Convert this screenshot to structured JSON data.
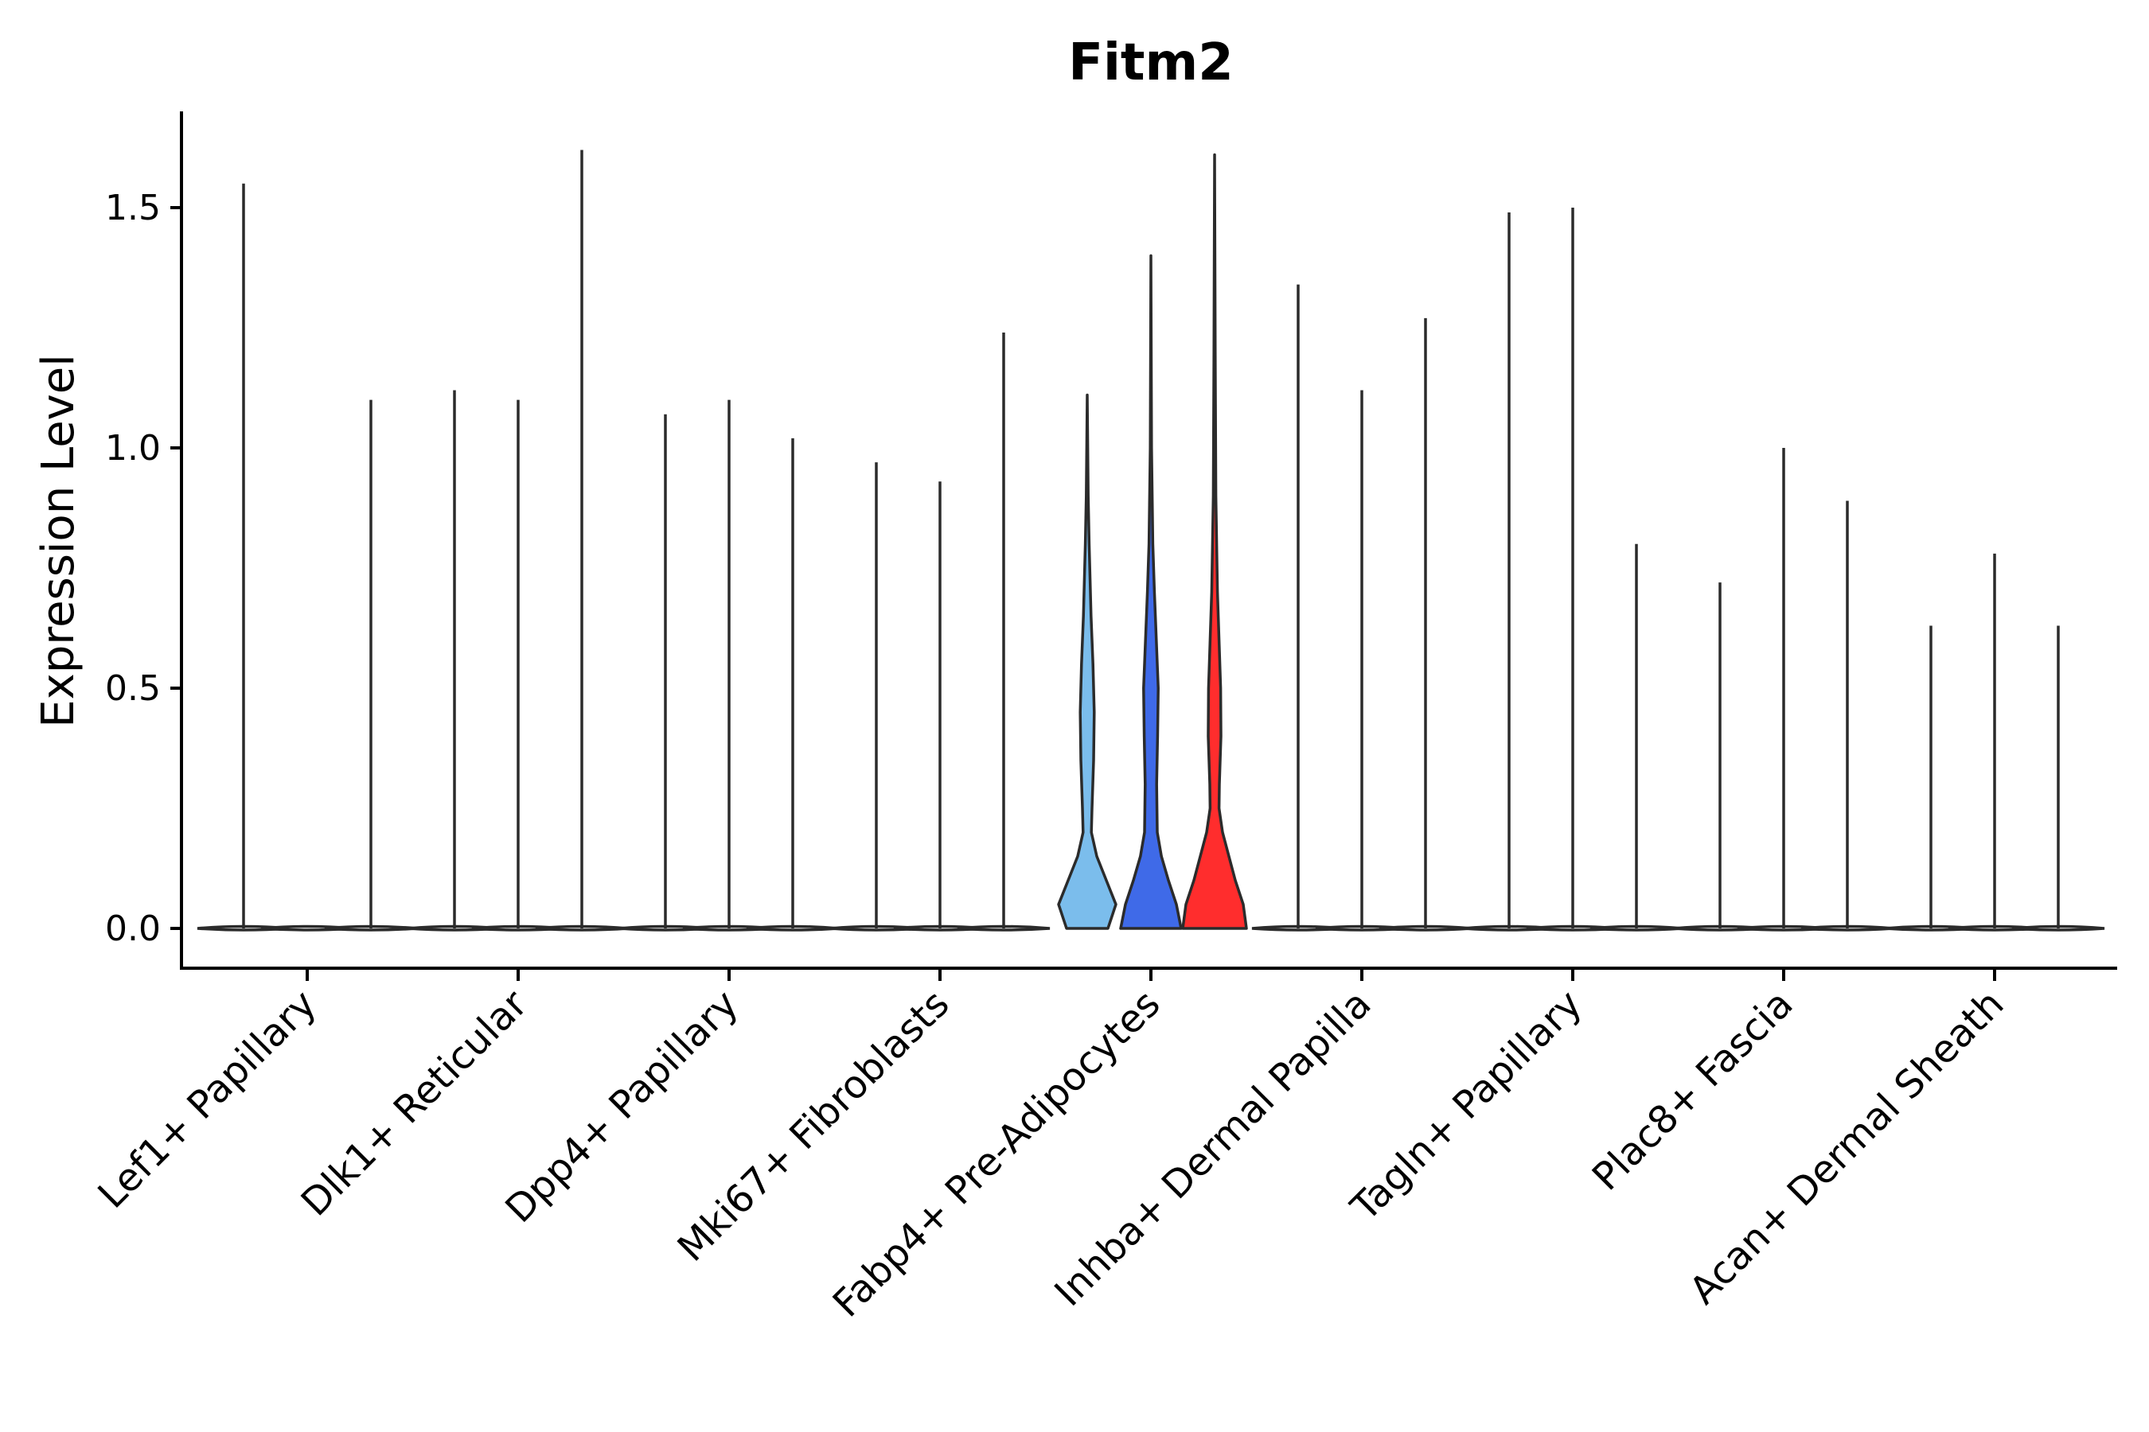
{
  "chart_data": {
    "type": "violin",
    "title": "Fitm2",
    "xlabel": "",
    "ylabel": "Expression Level",
    "ylim": [
      -0.08,
      1.7
    ],
    "yticks": [
      0.0,
      0.5,
      1.0,
      1.5
    ],
    "ytick_labels": [
      "0.0",
      "0.5",
      "1.0",
      "1.5"
    ],
    "grid": false,
    "legend": "none",
    "categories": [
      "Lef1+ Papillary",
      "Dlk1+ Reticular",
      "Dpp4+ Papillary",
      "Mki67+ Fibroblasts",
      "Fabp4+ Pre-Adipocytes",
      "Inhba+ Dermal Papilla",
      "Tagln+ Papillary",
      "Plac8+ Fascia",
      "Acan+ Dermal Sheath"
    ],
    "groups_per_category": 3,
    "violin_max": [
      [
        1.55,
        null,
        1.1
      ],
      [
        1.12,
        1.1,
        1.62
      ],
      [
        1.07,
        1.1,
        1.02
      ],
      [
        0.97,
        0.93,
        1.24
      ],
      [
        1.11,
        1.4,
        1.61
      ],
      [
        1.34,
        1.12,
        1.27
      ],
      [
        1.49,
        1.5,
        0.8
      ],
      [
        0.72,
        1.0,
        0.89
      ],
      [
        0.63,
        0.78,
        0.63
      ]
    ],
    "highlighted_violins": [
      {
        "category": "Fabp4+ Pre-Adipocytes",
        "group": 0,
        "color": "#7bbdec",
        "max": 1.11,
        "density": [
          [
            0.0,
            0.65
          ],
          [
            0.05,
            0.9
          ],
          [
            0.1,
            0.6
          ],
          [
            0.15,
            0.3
          ],
          [
            0.2,
            0.13
          ],
          [
            0.25,
            0.15
          ],
          [
            0.35,
            0.2
          ],
          [
            0.45,
            0.22
          ],
          [
            0.55,
            0.18
          ],
          [
            0.65,
            0.12
          ],
          [
            0.8,
            0.06
          ],
          [
            0.9,
            0.03
          ],
          [
            1.11,
            0.0
          ]
        ]
      },
      {
        "category": "Fabp4+ Pre-Adipocytes",
        "group": 1,
        "color": "#3f6ae8",
        "max": 1.4,
        "density": [
          [
            0.0,
            0.95
          ],
          [
            0.05,
            0.8
          ],
          [
            0.1,
            0.55
          ],
          [
            0.15,
            0.33
          ],
          [
            0.2,
            0.2
          ],
          [
            0.3,
            0.18
          ],
          [
            0.4,
            0.21
          ],
          [
            0.5,
            0.23
          ],
          [
            0.6,
            0.17
          ],
          [
            0.7,
            0.11
          ],
          [
            0.8,
            0.06
          ],
          [
            1.0,
            0.02
          ],
          [
            1.4,
            0.0
          ]
        ]
      },
      {
        "category": "Fabp4+ Pre-Adipocytes",
        "group": 2,
        "color": "#ff2d2d",
        "max": 1.61,
        "density": [
          [
            0.0,
            1.0
          ],
          [
            0.05,
            0.9
          ],
          [
            0.1,
            0.65
          ],
          [
            0.15,
            0.45
          ],
          [
            0.2,
            0.25
          ],
          [
            0.25,
            0.14
          ],
          [
            0.3,
            0.15
          ],
          [
            0.4,
            0.2
          ],
          [
            0.5,
            0.19
          ],
          [
            0.6,
            0.14
          ],
          [
            0.7,
            0.09
          ],
          [
            0.9,
            0.04
          ],
          [
            1.2,
            0.02
          ],
          [
            1.61,
            0.0
          ]
        ]
      }
    ]
  }
}
